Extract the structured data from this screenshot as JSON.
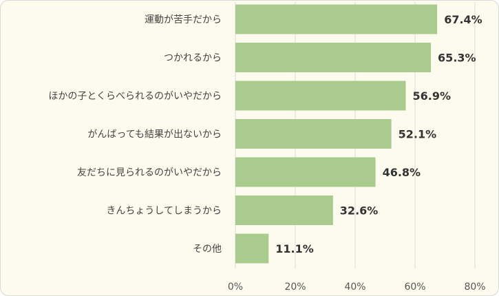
{
  "chart_data": {
    "type": "bar",
    "orientation": "horizontal",
    "categories": [
      "運動が苦手だから",
      "つかれるから",
      "ほかの子とくらべられるのがいやだから",
      "がんばっても結果が出ないから",
      "友だちに見られるのがいやだから",
      "きんちょうしてしまうから",
      "その他"
    ],
    "values": [
      67.4,
      65.3,
      56.9,
      52.1,
      46.8,
      32.6,
      11.1
    ],
    "data_labels": [
      "67.4%",
      "65.3%",
      "56.9%",
      "52.1%",
      "46.8%",
      "32.6%",
      "11.1%"
    ],
    "x_ticks": [
      0,
      20,
      40,
      60,
      80
    ],
    "x_tick_labels": [
      "0%",
      "20%",
      "40%",
      "60%",
      "80%"
    ],
    "xlim": [
      0,
      80
    ],
    "grid": true,
    "title": "",
    "xlabel": "",
    "ylabel": "",
    "colors": {
      "bar": "#a9cc8e",
      "background": "#fdfbee",
      "grid": "#d9d9d9",
      "border": "#d9d9d9"
    }
  }
}
